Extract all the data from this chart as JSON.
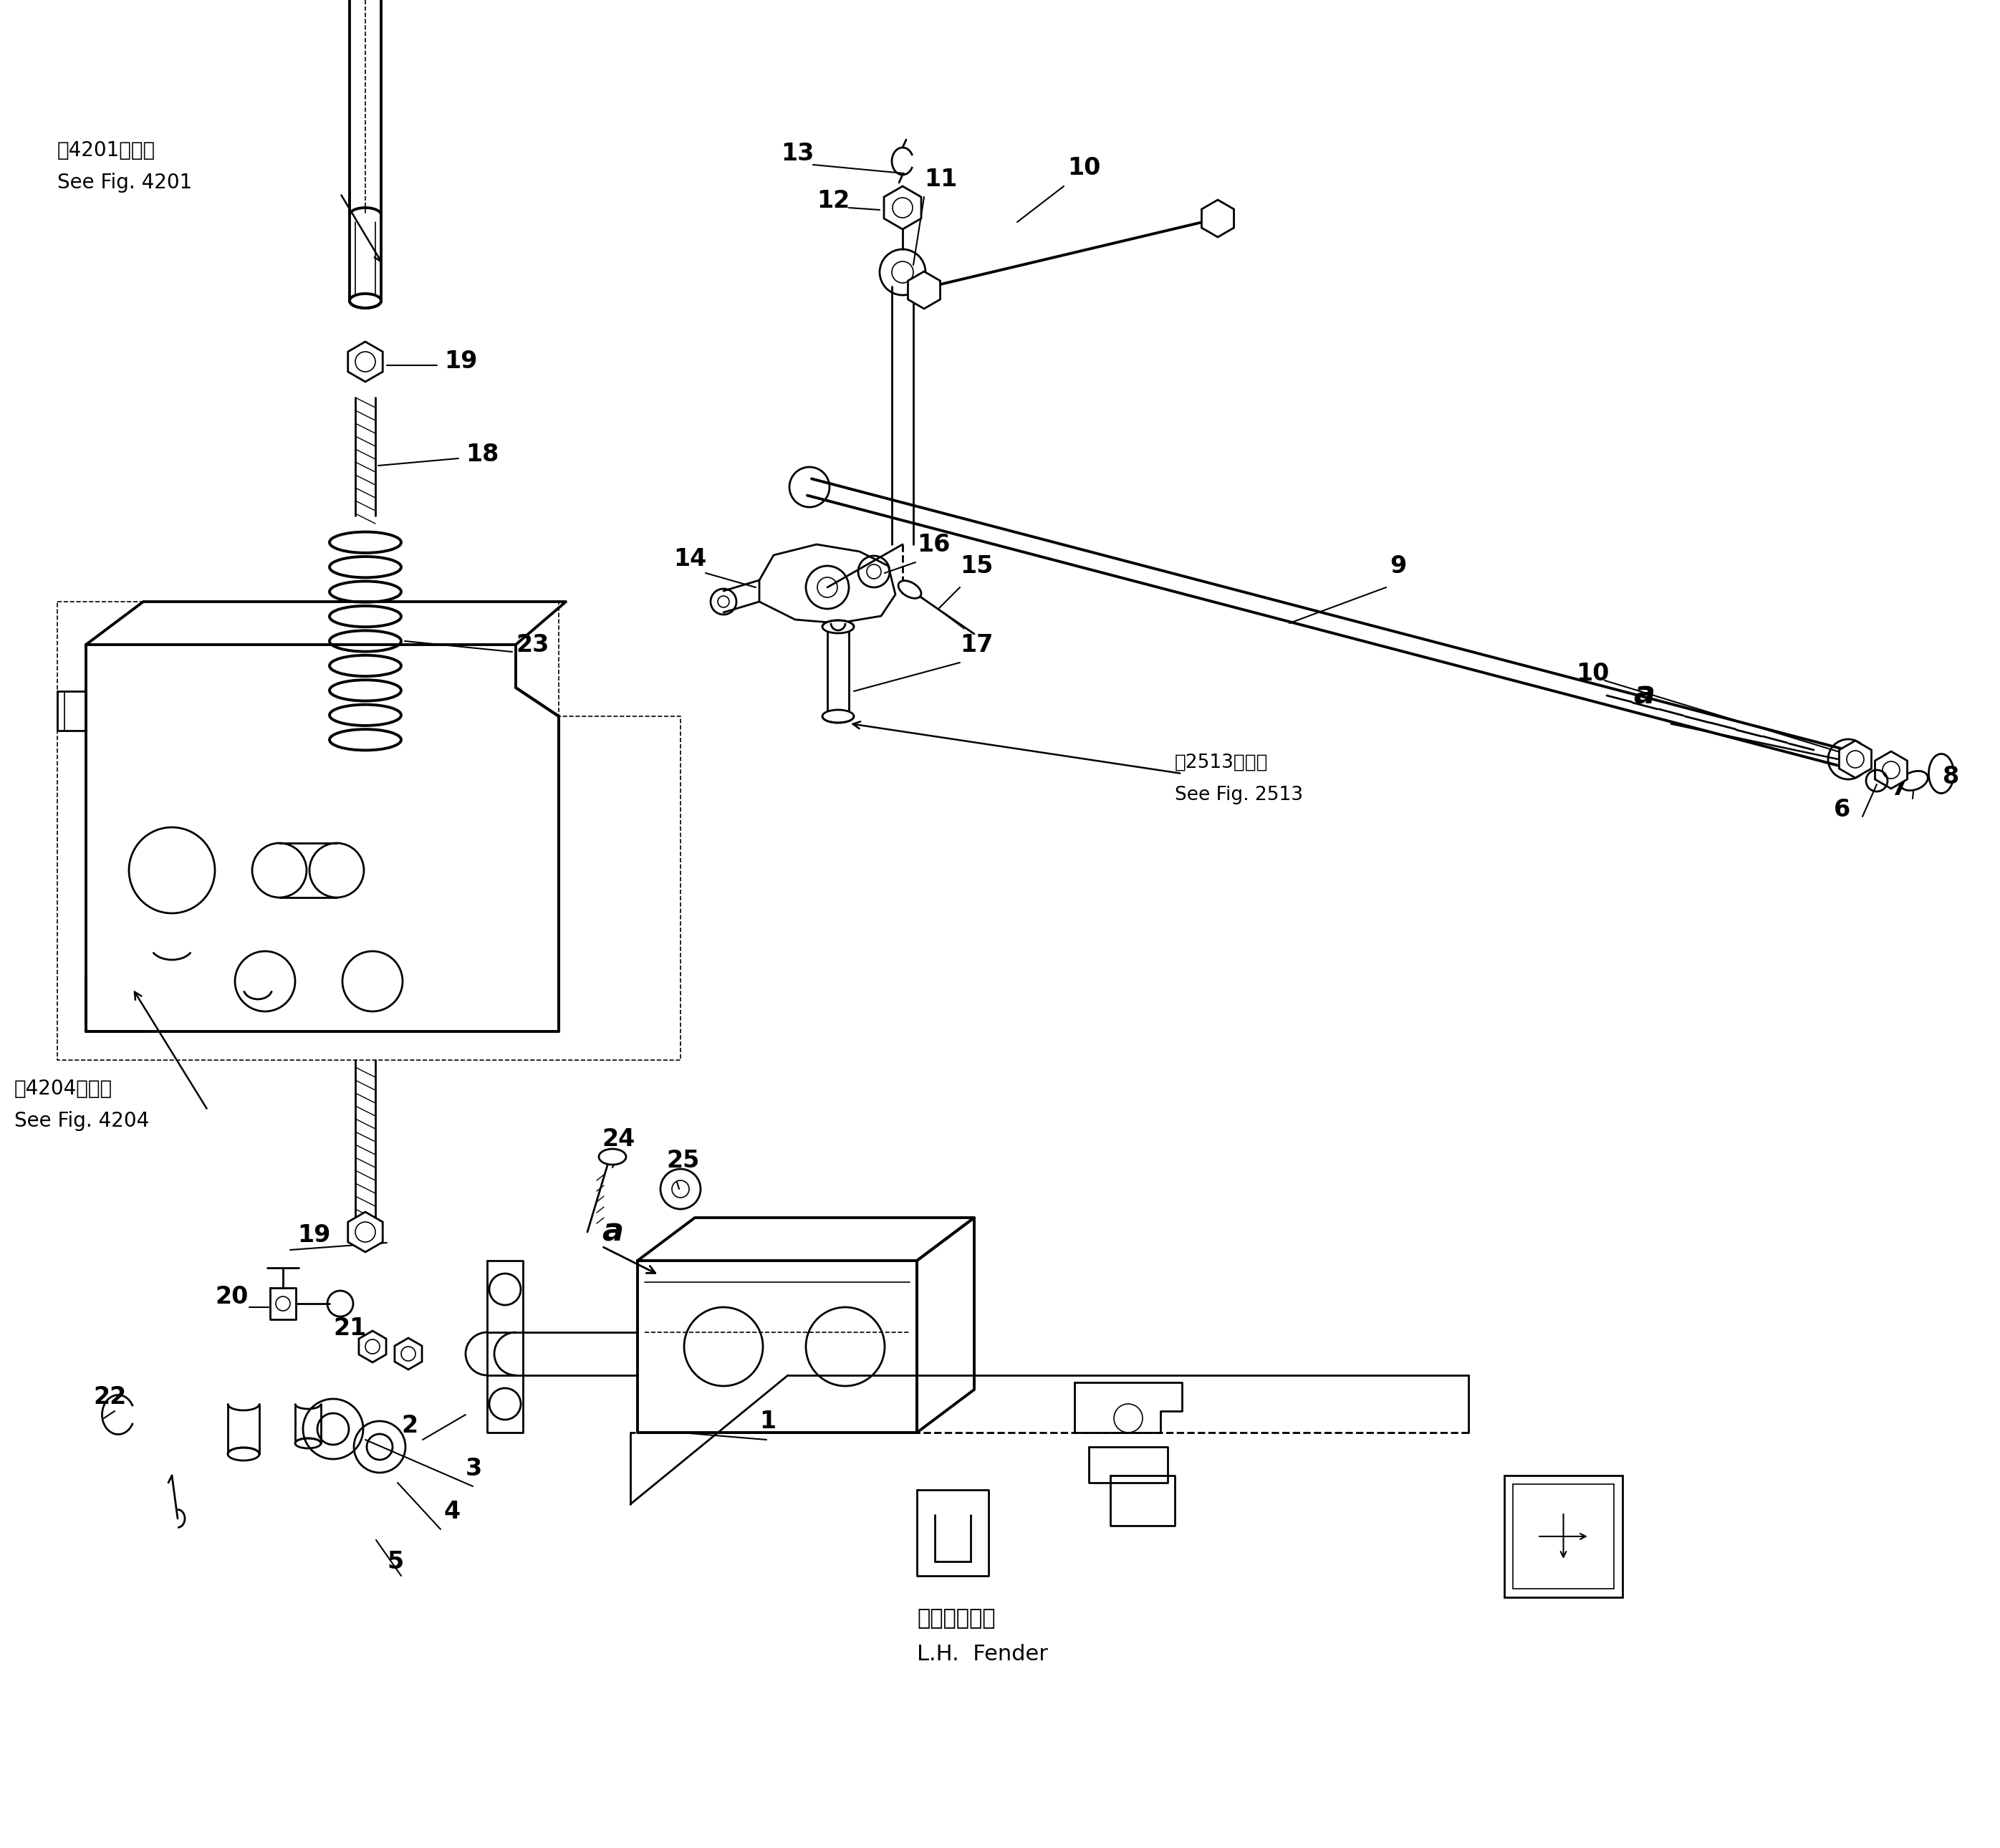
{
  "bg_color": "#ffffff",
  "line_color": "#000000",
  "fig_width": 27.92,
  "fig_height": 25.8,
  "labels": {
    "see_fig_4201_jp": "第4201図参照",
    "see_fig_4201_en": "See Fig. 4201",
    "see_fig_4204_jp": "第4204図参照",
    "see_fig_4204_en": "See Fig. 4204",
    "see_fig_2513_jp": "第2513図参照",
    "see_fig_2513_en": "See Fig. 2513",
    "lh_fender_jp": "左　フェンダ",
    "lh_fender_en": "L.H.  Fender"
  }
}
